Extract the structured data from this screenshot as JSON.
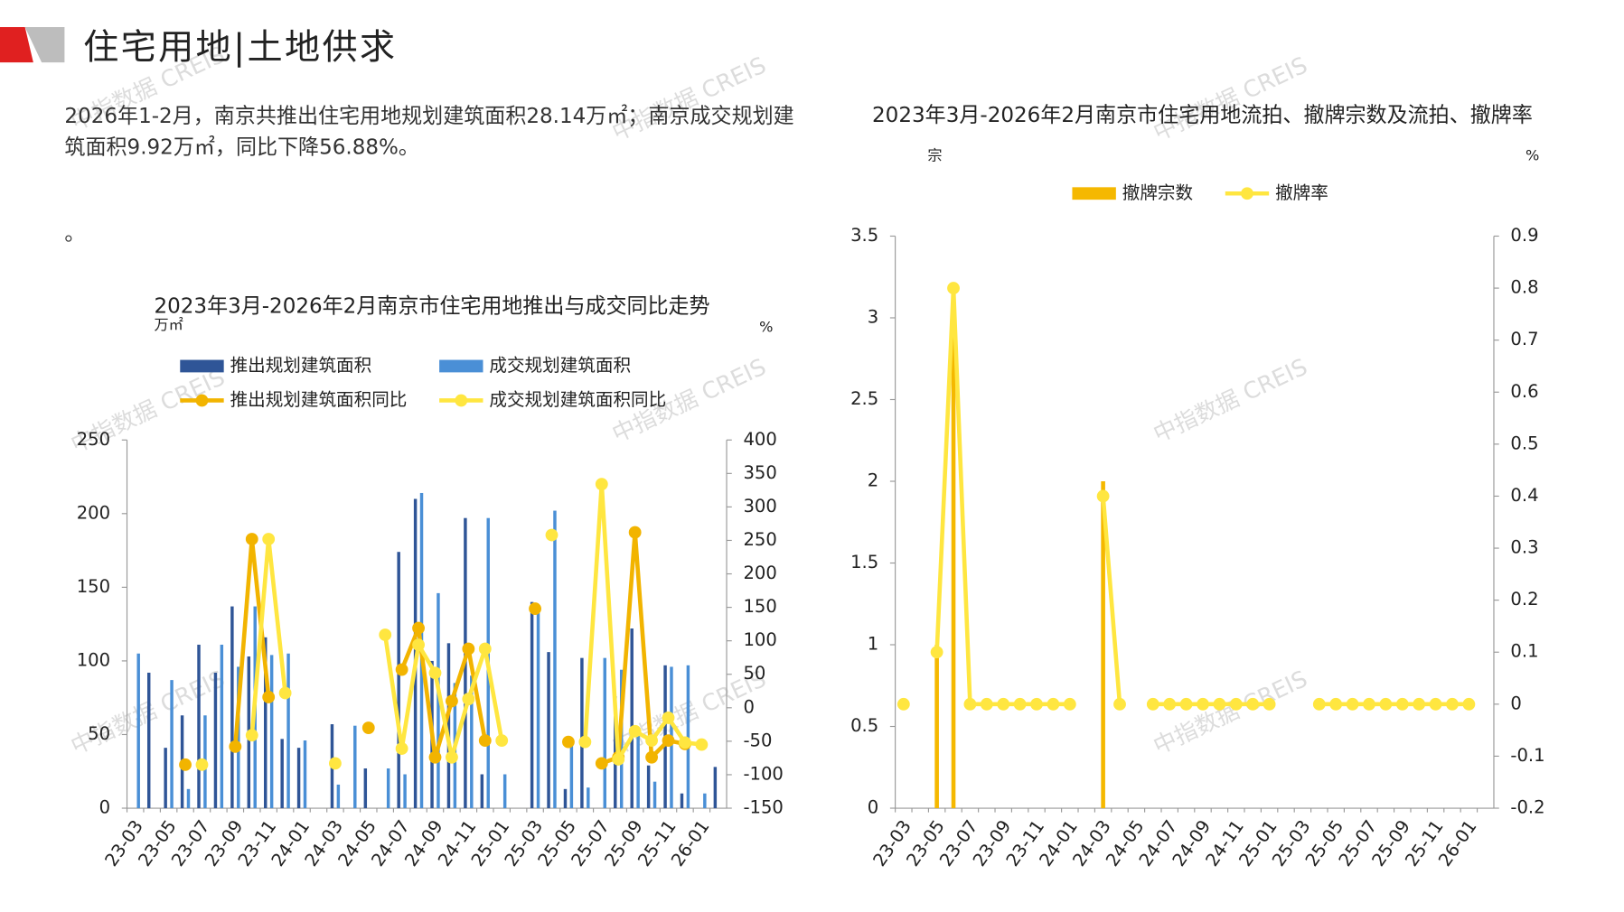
{
  "header": {
    "title": "住宅用地|土地供求"
  },
  "text": {
    "paragraph": "2026年1-2月，南京共推出住宅用地规划建筑面积28.14万㎡；南京成交规划建筑面积9.92万㎡，同比下降56.88%。",
    "note": "。"
  },
  "watermark": "中指数据 CREIS",
  "chart_data": [
    {
      "type": "bar",
      "title": "2023年3月-2026年2月南京市住宅用地推出与成交同比走势",
      "y_label": "万㎡",
      "y2_label": "%",
      "categories": [
        "23-03",
        null,
        "23-05",
        null,
        "23-07",
        null,
        "23-09",
        null,
        "23-11",
        null,
        "24-01",
        null,
        "24-03",
        null,
        "24-05",
        null,
        "24-07",
        null,
        "24-09",
        null,
        "24-11",
        null,
        "25-01",
        null,
        "25-03",
        null,
        "25-05",
        null,
        "25-07",
        null,
        "25-09",
        null,
        "25-11",
        null,
        "26-01",
        null
      ],
      "series": [
        {
          "name": "推出规划建筑面积",
          "type": "bar",
          "color": "#2f5597",
          "values": [
            0,
            92,
            41,
            63,
            111,
            92,
            137,
            103,
            116,
            47,
            41,
            0,
            57,
            0,
            27,
            0,
            174,
            210,
            100,
            112,
            197,
            23,
            0,
            0,
            140,
            106,
            13,
            102,
            0,
            76,
            122,
            29,
            97,
            10,
            0,
            28
          ]
        },
        {
          "name": "成交规划建筑面积",
          "type": "bar",
          "color": "#4a8fd6",
          "values": [
            105,
            0,
            87,
            13,
            63,
            111,
            96,
            137,
            104,
            105,
            46,
            0,
            16,
            56,
            0,
            27,
            23,
            214,
            146,
            85,
            90,
            197,
            23,
            0,
            135,
            202,
            44,
            14,
            102,
            94,
            51,
            18,
            96,
            97,
            10,
            0
          ]
        },
        {
          "name": "推出规划建筑面积同比",
          "type": "line",
          "axis": "y2",
          "color": "#f2b400",
          "values": [
            null,
            null,
            null,
            -85,
            null,
            null,
            -58,
            252,
            16,
            null,
            null,
            null,
            null,
            null,
            -30,
            null,
            57,
            119,
            -74,
            10,
            88,
            -49,
            null,
            null,
            148,
            null,
            -51,
            null,
            -83,
            -74,
            262,
            -74,
            -49,
            -54,
            null,
            null
          ]
        },
        {
          "name": "成交规划建筑面积同比",
          "type": "line",
          "axis": "y2",
          "color": "#ffe640",
          "values": [
            null,
            null,
            null,
            null,
            -85,
            null,
            null,
            -41,
            252,
            22,
            null,
            null,
            -83,
            null,
            null,
            109,
            -61,
            94,
            52,
            -74,
            13,
            88,
            -49,
            null,
            null,
            258,
            null,
            -51,
            334,
            -77,
            -35,
            -49,
            -15,
            -52,
            -55,
            null
          ]
        }
      ],
      "ylim": [
        0,
        250
      ],
      "yticks": [
        0,
        50,
        100,
        150,
        200,
        250
      ],
      "y2lim": [
        -150,
        400
      ],
      "y2ticks": [
        -150,
        -100,
        -50,
        0,
        50,
        100,
        150,
        200,
        250,
        300,
        350,
        400
      ],
      "grid": false,
      "legend": "top"
    },
    {
      "type": "bar",
      "title": "2023年3月-2026年2月南京市住宅用地流拍、撤牌宗数及流拍、撤牌率",
      "y_label": "宗",
      "y2_label": "%",
      "categories": [
        "23-03",
        null,
        "23-05",
        null,
        "23-07",
        null,
        "23-09",
        null,
        "23-11",
        null,
        "24-01",
        null,
        "24-03",
        null,
        "24-05",
        null,
        "24-07",
        null,
        "24-09",
        null,
        "24-11",
        null,
        "25-01",
        null,
        "25-03",
        null,
        "25-05",
        null,
        "25-07",
        null,
        "25-09",
        null,
        "25-11",
        null,
        "26-01",
        null
      ],
      "series": [
        {
          "name": "撤牌宗数",
          "type": "bar",
          "color": "#f5b800",
          "values": [
            0,
            0,
            1,
            3,
            0,
            0,
            0,
            0,
            0,
            0,
            0,
            0,
            2,
            0,
            0,
            0,
            0,
            0,
            0,
            0,
            0,
            0,
            0,
            0,
            0,
            0,
            0,
            0,
            0,
            0,
            0,
            0,
            0,
            0,
            0,
            0
          ]
        },
        {
          "name": "撤牌率",
          "type": "line",
          "axis": "y2",
          "color": "#ffe640",
          "values": [
            0,
            null,
            0.1,
            0.8,
            0,
            0,
            0,
            0,
            0,
            0,
            0,
            null,
            0.4,
            0,
            null,
            0,
            0,
            0,
            0,
            0,
            0,
            0,
            0,
            null,
            null,
            0,
            0,
            0,
            0,
            0,
            0,
            0,
            0,
            0,
            0,
            null
          ]
        }
      ],
      "ylim": [
        0,
        3.5
      ],
      "yticks": [
        0,
        0.5,
        1,
        1.5,
        2,
        2.5,
        3,
        3.5
      ],
      "y2lim": [
        -0.2,
        0.9
      ],
      "y2ticks": [
        -0.2,
        -0.1,
        0,
        0.1,
        0.2,
        0.3,
        0.4,
        0.5,
        0.6,
        0.7,
        0.8,
        0.9
      ],
      "grid": false,
      "legend": "top"
    }
  ]
}
